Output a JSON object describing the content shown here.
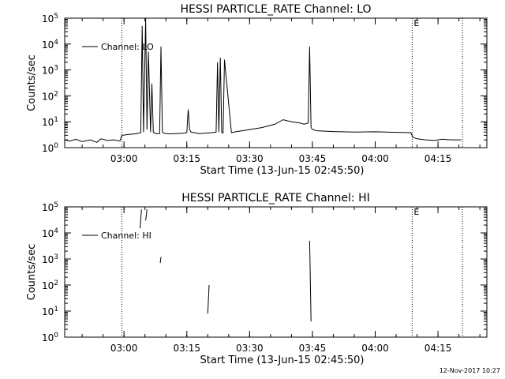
{
  "footer": {
    "timestamp": "12-Nov-2017 10:27"
  },
  "chart_data": [
    {
      "type": "line",
      "title": "HESSI PARTICLE_RATE Channel: LO",
      "xlabel": "Start Time (13-Jun-15 02:45:50)",
      "ylabel": "Counts/sec",
      "yscale": "log",
      "ylim": [
        1,
        100000
      ],
      "xlim": [
        "02:45:50",
        "04:26:40"
      ],
      "y_ticks": [
        {
          "value": 1,
          "label": "10^0"
        },
        {
          "value": 10,
          "label": "10^1"
        },
        {
          "value": 100,
          "label": "10^2"
        },
        {
          "value": 1000,
          "label": "10^3"
        },
        {
          "value": 10000,
          "label": "10^4"
        },
        {
          "value": 100000,
          "label": "10^5"
        }
      ],
      "x_ticks": [
        "03:00",
        "03:15",
        "03:30",
        "03:45",
        "04:00",
        "04:15"
      ],
      "legend": {
        "label": "Channel: LO",
        "position": "top-left"
      },
      "grid": false,
      "markers": [
        {
          "time": "02:59:30",
          "label": ""
        },
        {
          "time": "04:08:50",
          "label": "E"
        },
        {
          "time": "04:20:50",
          "label": ""
        }
      ],
      "series": [
        {
          "name": "Channel: LO",
          "x": [
            "02:45:50",
            "02:47:00",
            "02:48:30",
            "02:50:00",
            "02:52:00",
            "02:53:30",
            "02:54:30",
            "02:56:00",
            "02:57:30",
            "02:59:00",
            "02:59:30",
            "03:01:00",
            "03:03:00",
            "03:04:00",
            "03:04:20",
            "03:04:40",
            "03:05:10",
            "03:05:30",
            "03:05:50",
            "03:06:20",
            "03:06:40",
            "03:07:00",
            "03:07:30",
            "03:08:30",
            "03:08:50",
            "03:09:10",
            "03:09:30",
            "03:11:00",
            "03:14:00",
            "03:15:00",
            "03:15:20",
            "03:15:40",
            "03:16:00",
            "03:18:00",
            "03:21:00",
            "03:22:00",
            "03:22:20",
            "03:22:40",
            "03:23:00",
            "03:23:20",
            "03:23:40",
            "03:24:00",
            "03:25:40",
            "03:26:00",
            "03:26:20",
            "03:27:00",
            "03:30:00",
            "03:33:00",
            "03:36:00",
            "03:38:00",
            "03:40:00",
            "03:42:00",
            "03:43:00",
            "03:44:00",
            "03:44:20",
            "03:44:40",
            "03:45:00",
            "03:45:30",
            "03:46:00",
            "03:50:00",
            "03:55:00",
            "04:00:00",
            "04:05:00",
            "04:08:30",
            "04:09:00",
            "04:10:00",
            "04:12:00",
            "04:14:00",
            "04:16:00",
            "04:18:00",
            "04:20:30"
          ],
          "y": [
            2,
            1.8,
            2.1,
            1.7,
            2,
            1.6,
            2.2,
            1.9,
            2,
            1.8,
            3,
            3.2,
            3.5,
            3.8,
            50000,
            4,
            100000,
            5,
            5000,
            4,
            300,
            4,
            3.5,
            3.5,
            8000,
            4,
            3.6,
            3.4,
            3.6,
            3.8,
            30,
            5,
            4,
            3.5,
            3.8,
            4,
            2000,
            4,
            3000,
            3.8,
            3.7,
            2500,
            3.8,
            3.9,
            4,
            4.2,
            5,
            6,
            8,
            12,
            10,
            9,
            8,
            9,
            8000,
            6,
            5,
            4.8,
            4.5,
            4.2,
            4,
            4.1,
            3.9,
            3.8,
            2.5,
            2.2,
            2,
            1.9,
            2.1,
            2,
            2
          ]
        }
      ]
    },
    {
      "type": "line",
      "title": "HESSI PARTICLE_RATE Channel: HI",
      "xlabel": "Start Time (13-Jun-15 02:45:50)",
      "ylabel": "Counts/sec",
      "yscale": "log",
      "ylim": [
        1,
        100000
      ],
      "xlim": [
        "02:45:50",
        "04:26:40"
      ],
      "y_ticks": [
        {
          "value": 1,
          "label": "10^0"
        },
        {
          "value": 10,
          "label": "10^1"
        },
        {
          "value": 100,
          "label": "10^2"
        },
        {
          "value": 1000,
          "label": "10^3"
        },
        {
          "value": 10000,
          "label": "10^4"
        },
        {
          "value": 100000,
          "label": "10^5"
        }
      ],
      "x_ticks": [
        "03:00",
        "03:15",
        "03:30",
        "03:45",
        "04:00",
        "04:15"
      ],
      "legend": {
        "label": "Channel: HI",
        "position": "top-left"
      },
      "grid": false,
      "markers": [
        {
          "time": "02:59:30",
          "label": ""
        },
        {
          "time": "04:08:50",
          "label": "E"
        },
        {
          "time": "04:20:50",
          "label": ""
        }
      ],
      "series": [
        {
          "name": "Channel: HI",
          "segments": [
            {
              "x": [
                "03:03:50",
                "03:04:10"
              ],
              "y": [
                15000,
                80000
              ]
            },
            {
              "x": [
                "03:05:10",
                "03:05:30"
              ],
              "y": [
                30000,
                80000
              ]
            },
            {
              "x": [
                "03:08:40",
                "03:08:50"
              ],
              "y": [
                700,
                1200
              ]
            },
            {
              "x": [
                "03:20:00",
                "03:20:20"
              ],
              "y": [
                8,
                100
              ]
            },
            {
              "x": [
                "03:44:20",
                "03:44:40"
              ],
              "y": [
                5000,
                4
              ]
            }
          ]
        }
      ]
    }
  ]
}
